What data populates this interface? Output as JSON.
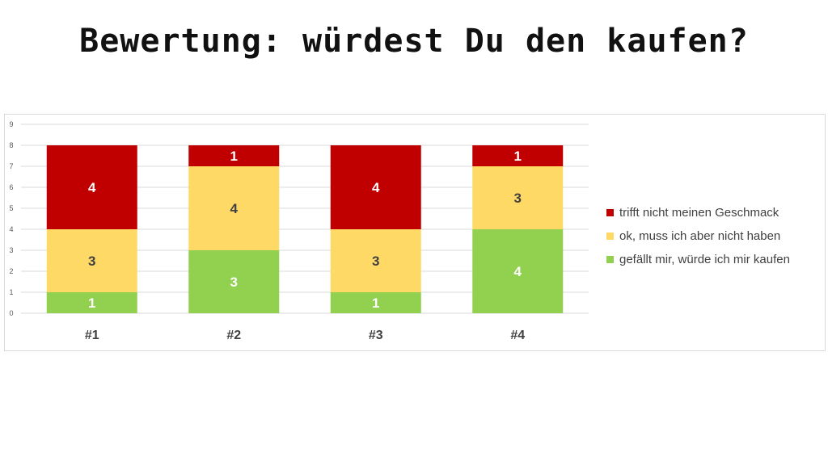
{
  "title": "Bewertung: würdest Du den kaufen?",
  "colors": {
    "red": "#c00000",
    "yellow": "#ffd966",
    "green": "#92d050",
    "grid": "#d9d9d9",
    "tick_text": "#595959"
  },
  "chart_data": {
    "type": "bar",
    "stacked": true,
    "categories": [
      "#1",
      "#2",
      "#3",
      "#4"
    ],
    "series": [
      {
        "name": "gefällt mir, würde ich mir kaufen",
        "values": [
          1,
          3,
          1,
          4
        ],
        "color": "#92d050"
      },
      {
        "name": "ok, muss ich aber nicht haben",
        "values": [
          3,
          4,
          3,
          3
        ],
        "color": "#ffd966"
      },
      {
        "name": "trifft nicht meinen Geschmack",
        "values": [
          4,
          1,
          4,
          1
        ],
        "color": "#c00000"
      }
    ],
    "ylim": [
      0,
      9
    ],
    "yticks": [
      0,
      1,
      2,
      3,
      4,
      5,
      6,
      7,
      8,
      9
    ],
    "grid": true,
    "legend_position": "right",
    "legend_order": [
      "trifft nicht meinen Geschmack",
      "ok, muss ich aber nicht haben",
      "gefällt mir, würde ich mir kaufen"
    ],
    "data_labels": true
  }
}
